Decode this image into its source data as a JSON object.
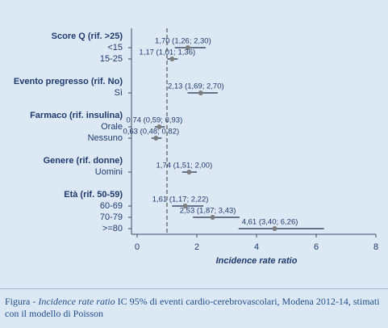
{
  "chart_data": {
    "type": "forest",
    "xlabel": "Incidence rate ratio",
    "xlim": [
      0,
      8
    ],
    "xticks": [
      0,
      2,
      4,
      6,
      8
    ],
    "refline": 1,
    "point_color": "#7d7d7d",
    "line_color": "#3c4a68",
    "groups": [
      {
        "name": "Score Q (rif. >25)",
        "items": [
          {
            "label": "<15",
            "value": 1.7,
            "low": 1.26,
            "high": 2.3,
            "value_label": "1,70 (1,26; 2,30)"
          },
          {
            "label": "15-25",
            "value": 1.17,
            "low": 1.01,
            "high": 1.36,
            "value_label": "1,17 (1,01; 1,36)"
          }
        ]
      },
      {
        "name": "Evento pregresso (rif. No)",
        "items": [
          {
            "label": "Sì",
            "value": 2.13,
            "low": 1.69,
            "high": 2.7,
            "value_label": "2,13 (1,69; 2,70)"
          }
        ]
      },
      {
        "name": "Farmaco (rif. insulina)",
        "items": [
          {
            "label": "Orale",
            "value": 0.74,
            "low": 0.59,
            "high": 0.93,
            "value_label": "0,74 (0,59; 0,93)"
          },
          {
            "label": "Nessuno",
            "value": 0.63,
            "low": 0.48,
            "high": 0.82,
            "value_label": "0,63 (0,48; 0,82)"
          }
        ]
      },
      {
        "name": "Genere (rif. donne)",
        "items": [
          {
            "label": "Uomini",
            "value": 1.74,
            "low": 1.51,
            "high": 2.0,
            "value_label": "1,74 (1,51; 2,00)"
          }
        ]
      },
      {
        "name": "Età (rif. 50-59)",
        "items": [
          {
            "label": "60-69",
            "value": 1.61,
            "low": 1.17,
            "high": 2.22,
            "value_label": "1,61 (1,17; 2,22)"
          },
          {
            "label": "70-79",
            "value": 2.53,
            "low": 1.87,
            "high": 3.43,
            "value_label": "2,53 (1,87; 3,43)"
          },
          {
            "label": ">=80",
            "value": 4.61,
            "low": 3.4,
            "high": 6.26,
            "value_label": "4,61 (3,40; 6,26)"
          }
        ]
      }
    ]
  },
  "caption": {
    "prefix": "Figura - ",
    "italic": "Incidence rate ratio",
    "rest": " IC 95% di eventi cardio-cerebrovascolari, Modena 2012-14, stimati con il modello di Poisson"
  }
}
